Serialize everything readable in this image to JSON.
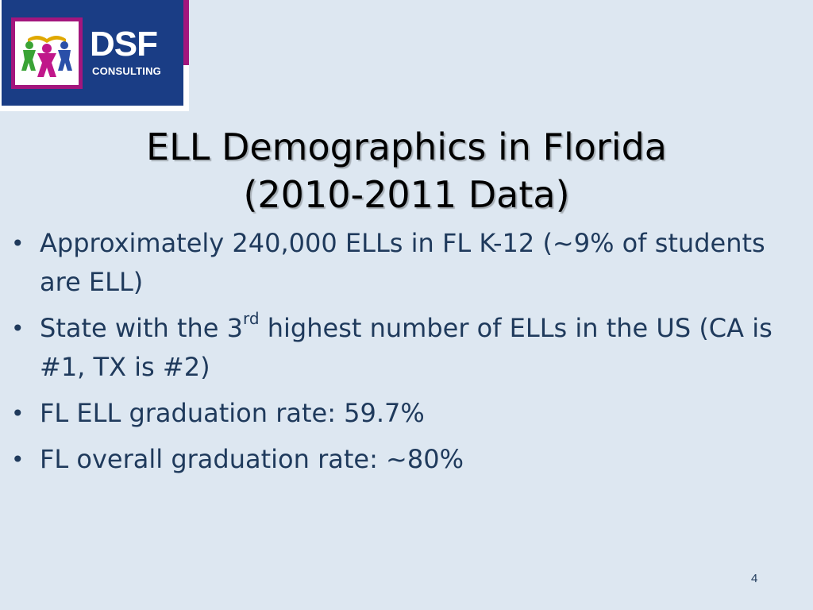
{
  "logo": {
    "word": "DSF",
    "sub": "CONSULTING",
    "colors": {
      "navy": "#1a3d85",
      "magenta": "#a3167d"
    },
    "emblem_icon": "people-book-emblem-icon"
  },
  "title": {
    "line1": "ELL Demographics in Florida",
    "line2": "(2010-2011 Data)"
  },
  "bullets": [
    {
      "text": "Approximately 240,000 ELLs in FL K-12 (~9% of students are ELL)"
    },
    {
      "pre": "State with the 3",
      "sup": "rd",
      "post": " highest number of ELLs in the US (CA is #1, TX is #2)"
    },
    {
      "text": "FL ELL graduation rate: 59.7%"
    },
    {
      "text": "FL overall graduation rate: ~80%"
    }
  ],
  "bullet_symbol": "•",
  "page_number": "4"
}
